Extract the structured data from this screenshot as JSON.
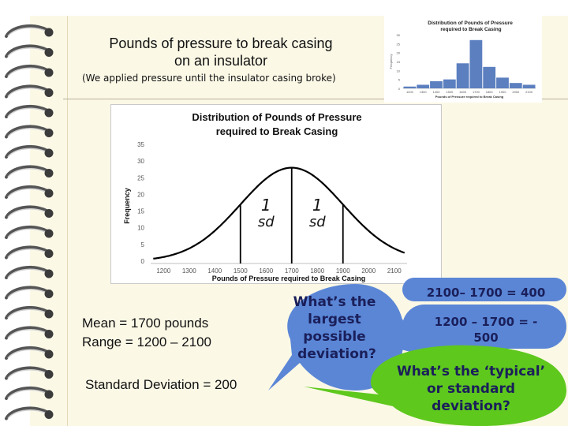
{
  "slide": {
    "title_line1": "Pounds of pressure to break casing",
    "title_line2": "on an insulator",
    "subtitle": "(We applied  pressure until the insulator  casing broke)"
  },
  "thumbnail": {
    "chart_data": {
      "type": "bar",
      "title": "Distribution of Pounds of Pressure required to Break Casing",
      "xlabel": "Pounds of Pressure required to Break Casing",
      "ylabel": "Frequency",
      "categories": [
        "1200",
        "1300",
        "1400",
        "1500",
        "1600",
        "1700",
        "1800",
        "1900",
        "2000",
        "2100"
      ],
      "values": [
        1,
        2,
        4,
        5,
        14,
        27,
        12,
        6,
        3,
        2
      ],
      "ylim": [
        0,
        30
      ],
      "yticks": [
        "30",
        "25",
        "20",
        "15",
        "10",
        "5",
        "0"
      ],
      "color": "#5b7fbf"
    }
  },
  "main_chart": {
    "chart_data": {
      "type": "line",
      "title_line1": "Distribution of Pounds of Pressure",
      "title_line2": "required to Break Casing",
      "xlabel": "Pounds of Pressure required to Break Casing",
      "ylabel": "Frequency",
      "x_ticks": [
        "1200",
        "1300",
        "1400",
        "1500",
        "1600",
        "1700",
        "1800",
        "1900",
        "2000",
        "2100"
      ],
      "y_ticks": [
        "35",
        "30",
        "25",
        "20",
        "15",
        "10",
        "5",
        "0"
      ],
      "xlim": [
        1150,
        2150
      ],
      "ylim": [
        0,
        35
      ],
      "mean": 1700,
      "sd": 200,
      "peak": 28,
      "sd_labels": [
        {
          "num": "1",
          "text": "sd"
        },
        {
          "num": "1",
          "text": "sd"
        }
      ],
      "sd_lines_x": [
        1500,
        1700,
        1900
      ]
    }
  },
  "stats": {
    "mean": "Mean = 1700 pounds",
    "range": "Range = 1200 – 2100",
    "sd": "Standard Deviation = 200"
  },
  "callout": {
    "question1": [
      "What’s the",
      "largest",
      "possible",
      "deviation?"
    ],
    "calc1": "2100– 1700 = 400",
    "calc2_line1": "1200 – 1700 = -",
    "calc2_line2": "500",
    "question2": [
      "What’s the ‘typical’",
      "or standard",
      "deviation?"
    ],
    "colors": {
      "blue_bubble": "#5b86d6",
      "green_bubble": "#5ec81d",
      "text": "#1a1f5a"
    }
  }
}
